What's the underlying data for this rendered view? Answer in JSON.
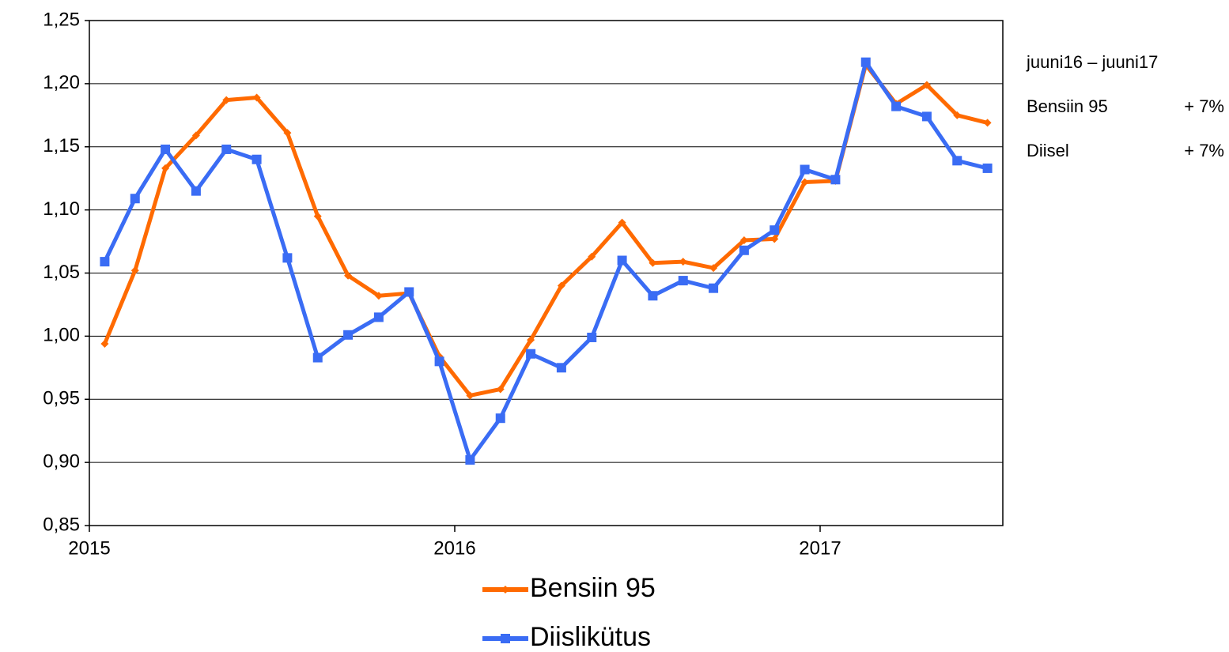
{
  "chart_data": {
    "type": "line",
    "x": [
      2015.042,
      2015.125,
      2015.208,
      2015.292,
      2015.375,
      2015.458,
      2015.542,
      2015.625,
      2015.708,
      2015.792,
      2015.875,
      2015.958,
      2016.042,
      2016.125,
      2016.208,
      2016.292,
      2016.375,
      2016.458,
      2016.542,
      2016.625,
      2016.708,
      2016.792,
      2016.875,
      2016.958,
      2017.042,
      2017.125,
      2017.208,
      2017.292,
      2017.375,
      2017.458
    ],
    "series": [
      {
        "name": "Bensiin 95",
        "color": "#ff6a00",
        "marker": "diamond",
        "values": [
          0.994,
          1.052,
          1.133,
          1.159,
          1.187,
          1.189,
          1.161,
          1.095,
          1.048,
          1.032,
          1.034,
          0.984,
          0.953,
          0.958,
          0.997,
          1.04,
          1.063,
          1.09,
          1.058,
          1.059,
          1.054,
          1.076,
          1.077,
          1.122,
          1.123,
          1.215,
          1.184,
          1.199,
          1.175,
          1.169
        ]
      },
      {
        "name": "Diislikütus",
        "color": "#3a6cf4",
        "marker": "square",
        "values": [
          1.059,
          1.109,
          1.148,
          1.115,
          1.148,
          1.14,
          1.062,
          0.983,
          1.001,
          1.015,
          1.035,
          0.98,
          0.902,
          0.935,
          0.986,
          0.975,
          0.999,
          1.06,
          1.032,
          1.044,
          1.038,
          1.068,
          1.084,
          1.132,
          1.124,
          1.217,
          1.182,
          1.174,
          1.139,
          1.133
        ]
      }
    ],
    "xlim": [
      2015,
      2017.5
    ],
    "xticks": [
      2015,
      2016,
      2017
    ],
    "ylim": [
      0.85,
      1.25
    ],
    "yticks": [
      {
        "value": 0.85,
        "label": "0,85"
      },
      {
        "value": 0.9,
        "label": "0,90"
      },
      {
        "value": 0.95,
        "label": "0,95"
      },
      {
        "value": 1.0,
        "label": "1,00"
      },
      {
        "value": 1.05,
        "label": "1,05"
      },
      {
        "value": 1.1,
        "label": "1,10"
      },
      {
        "value": 1.15,
        "label": "1,15"
      },
      {
        "value": 1.2,
        "label": "1,20"
      },
      {
        "value": 1.25,
        "label": "1,25"
      }
    ],
    "grid": true,
    "legend": "bottom",
    "annotations": {
      "title": "juuni16 – juuni17",
      "rows": [
        {
          "name": "Bensiin 95",
          "change": "+ 7%"
        },
        {
          "name": "Diisel",
          "change": "+ 7%"
        }
      ]
    }
  }
}
